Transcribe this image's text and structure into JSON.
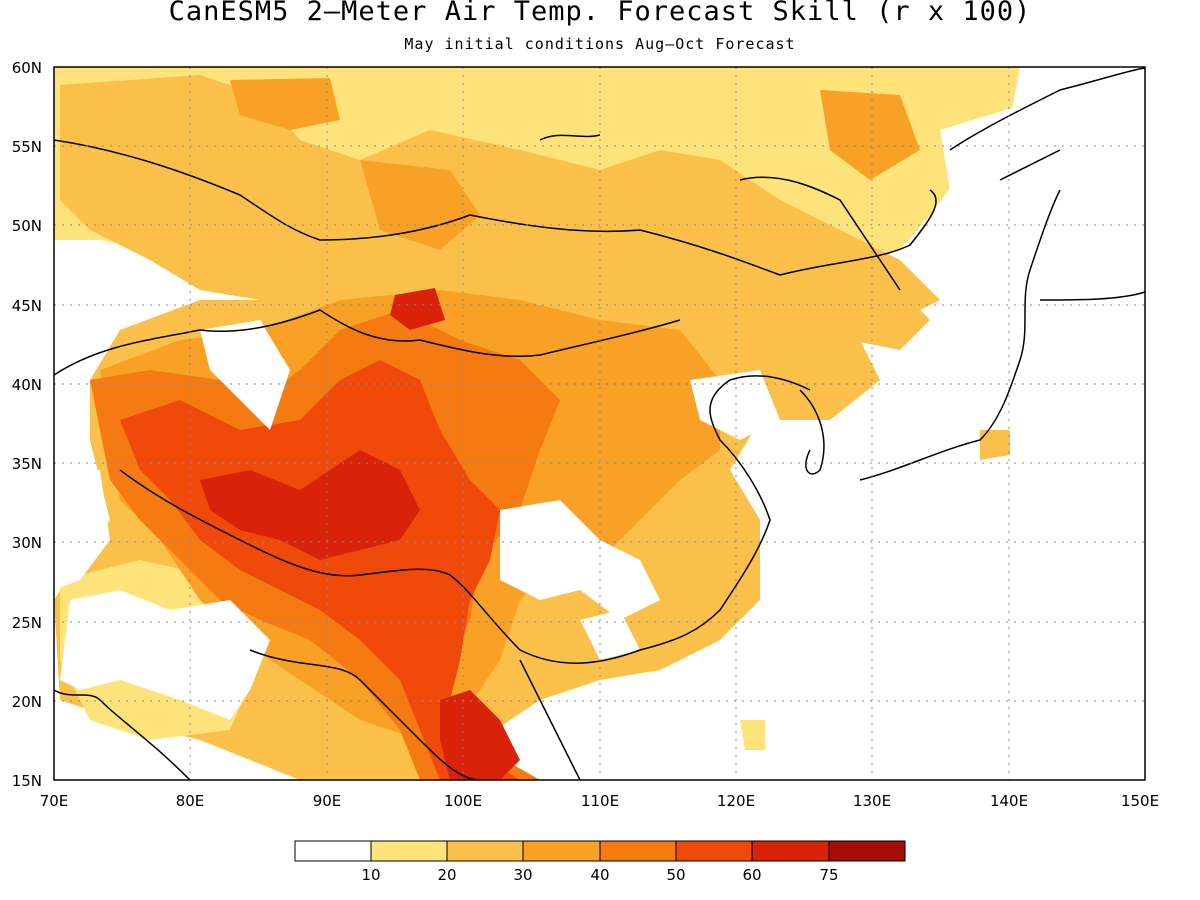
{
  "title": "CanESM5 2–Meter Air Temp. Forecast Skill (r x 100)",
  "subtitle": "May initial conditions  Aug–Oct Forecast",
  "map": {
    "lon_range": [
      70,
      150
    ],
    "lat_range": [
      15,
      60
    ],
    "lon_labels": [
      "70E",
      "80E",
      "90E",
      "100E",
      "110E",
      "120E",
      "130E",
      "140E",
      "150E"
    ],
    "lat_labels": [
      "15N",
      "20N",
      "25N",
      "30N",
      "35N",
      "40N",
      "45N",
      "50N",
      "55N",
      "60N"
    ],
    "grid": "dotted"
  },
  "colorbar": {
    "labels": [
      "10",
      "20",
      "30",
      "40",
      "50",
      "60",
      "75"
    ],
    "colors": [
      "#ffffff",
      "#fde37a",
      "#fbc04a",
      "#f8a126",
      "#f67a12",
      "#f04a0a",
      "#d8220a",
      "#a50f0a"
    ]
  }
}
